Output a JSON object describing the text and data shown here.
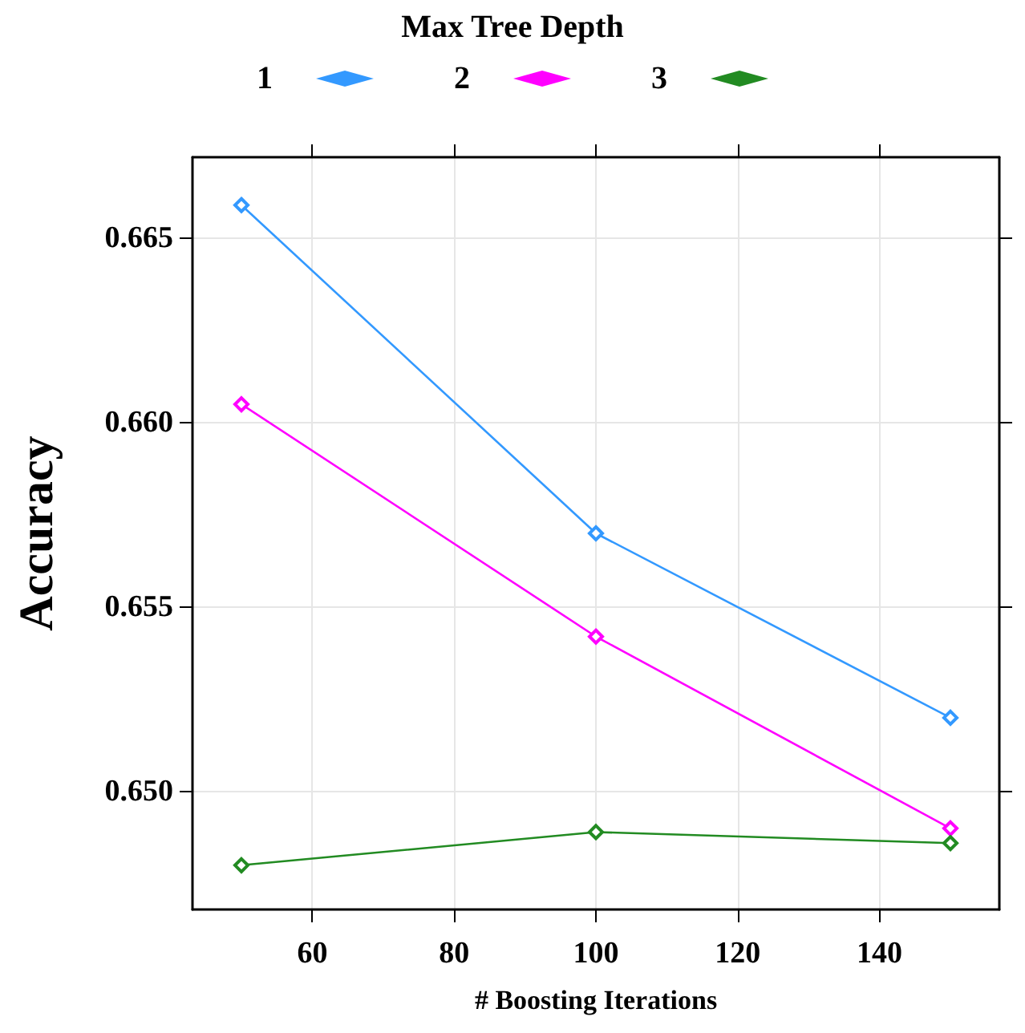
{
  "chart_data": {
    "type": "line",
    "xlabel": "# Boosting Iterations",
    "ylabel": "Accuracy",
    "legend_title": "Max Tree Depth",
    "x": [
      50,
      100,
      150
    ],
    "series": [
      {
        "name": "1",
        "color": "#3399ff",
        "values": [
          0.6659,
          0.657,
          0.652
        ]
      },
      {
        "name": "2",
        "color": "#ff00ff",
        "values": [
          0.6605,
          0.6542,
          0.649
        ]
      },
      {
        "name": "3",
        "color": "#228b22",
        "values": [
          0.648,
          0.6489,
          0.6486
        ]
      }
    ],
    "xlim": [
      43.1,
      156.9
    ],
    "xticks": [
      60,
      80,
      100,
      120,
      140
    ],
    "ylim": [
      0.6468,
      0.6672
    ],
    "yticks": [
      {
        "value": 0.65,
        "label": "0.650"
      },
      {
        "value": 0.655,
        "label": "0.655"
      },
      {
        "value": 0.66,
        "label": "0.660"
      },
      {
        "value": 0.665,
        "label": "0.665"
      }
    ],
    "grid": true,
    "legend": "top",
    "marker": "diamond",
    "line_style": "solid"
  }
}
